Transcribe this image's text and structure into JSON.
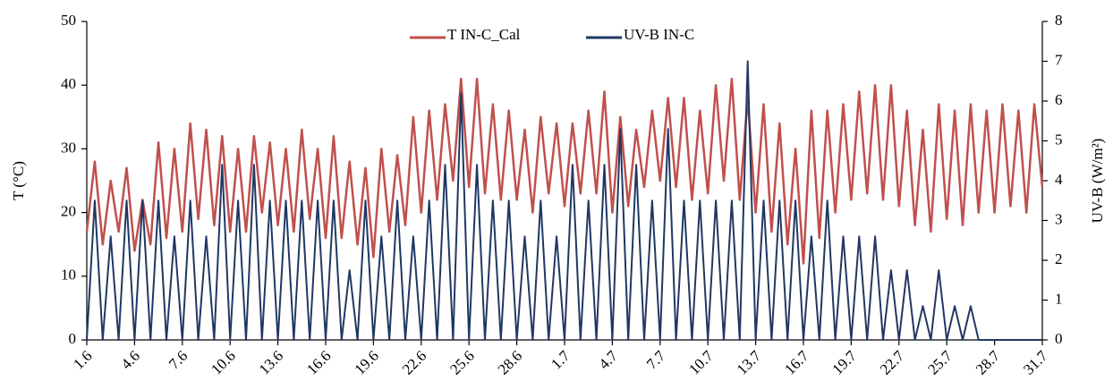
{
  "chart_data": {
    "type": "line",
    "categories": [
      "1.6",
      null,
      null,
      null,
      null,
      null,
      "4.6",
      null,
      null,
      null,
      null,
      null,
      "7.6",
      null,
      null,
      null,
      null,
      null,
      "10.6",
      null,
      null,
      null,
      null,
      null,
      "13.6",
      null,
      null,
      null,
      null,
      null,
      "16.6",
      null,
      null,
      null,
      null,
      null,
      "19.6",
      null,
      null,
      null,
      null,
      null,
      "22.6",
      null,
      null,
      null,
      null,
      null,
      "25.6",
      null,
      null,
      null,
      null,
      null,
      "28.6",
      null,
      null,
      null,
      null,
      null,
      "1.7",
      null,
      null,
      null,
      null,
      null,
      "4.7",
      null,
      null,
      null,
      null,
      null,
      "7.7",
      null,
      null,
      null,
      null,
      null,
      "10.7",
      null,
      null,
      null,
      null,
      null,
      "13.7",
      null,
      null,
      null,
      null,
      null,
      "16.7",
      null,
      null,
      null,
      null,
      null,
      "19.7",
      null,
      null,
      null,
      null,
      null,
      "22.7",
      null,
      null,
      null,
      null,
      null,
      "25.7",
      null,
      null,
      null,
      null,
      null,
      "28.7",
      null,
      null,
      null,
      null,
      null,
      "31.7"
    ],
    "series": [
      {
        "name": "T IN-C_Cal",
        "color": "#c0504d",
        "axis": "y",
        "values": [
          17,
          28,
          15,
          25,
          17,
          27,
          14,
          22,
          15,
          31,
          16,
          30,
          17,
          34,
          19,
          33,
          18,
          32,
          17,
          30,
          17,
          32,
          20,
          31,
          18,
          30,
          17,
          33,
          19,
          30,
          16,
          32,
          16,
          28,
          15,
          27,
          13,
          30,
          17,
          29,
          18,
          35,
          20,
          36,
          22,
          37,
          25,
          41,
          24,
          41,
          23,
          37,
          22,
          36,
          22,
          33,
          20,
          35,
          23,
          34,
          21,
          34,
          23,
          36,
          23,
          39,
          20,
          35,
          21,
          33,
          24,
          36,
          25,
          38,
          24,
          38,
          22,
          36,
          23,
          40,
          25,
          41,
          22,
          38,
          20,
          37,
          17,
          34,
          15,
          30,
          12,
          36,
          16,
          36,
          20,
          37,
          22,
          39,
          23,
          40,
          22,
          40,
          21,
          36,
          18,
          33,
          17,
          37,
          19,
          36,
          18,
          37,
          20,
          36,
          20,
          37,
          21,
          36,
          20,
          37,
          24
        ]
      },
      {
        "name": "UV-B IN-C",
        "color": "#1f3864",
        "axis": "y2",
        "values": [
          0,
          3.5,
          0,
          2.6,
          0,
          3.5,
          0,
          3.5,
          0,
          3.5,
          0,
          2.6,
          0,
          3.5,
          0,
          2.6,
          0,
          4.4,
          0,
          3.5,
          0,
          4.4,
          0,
          3.5,
          0,
          3.5,
          0,
          3.5,
          0,
          3.5,
          0,
          3.5,
          0,
          1.75,
          0,
          3.5,
          0,
          2.6,
          0,
          3.5,
          0,
          2.6,
          0,
          3.5,
          0,
          4.4,
          0,
          6.2,
          0,
          4.4,
          0,
          3.5,
          0,
          3.5,
          0,
          2.6,
          0,
          3.5,
          0,
          2.6,
          0,
          4.4,
          0,
          3.5,
          0,
          4.4,
          0,
          5.3,
          0,
          4.4,
          0,
          3.5,
          0,
          5.3,
          0,
          3.5,
          0,
          3.5,
          0,
          3.5,
          0,
          3.5,
          0,
          7.0,
          0,
          3.5,
          0,
          3.5,
          0,
          3.5,
          0,
          2.6,
          0,
          3.5,
          0,
          2.6,
          0,
          2.6,
          0,
          2.6,
          0,
          1.75,
          0,
          1.75,
          0,
          0.85,
          0,
          1.75,
          0,
          0.85,
          0,
          0.85,
          0,
          0,
          0,
          0,
          0,
          0,
          0,
          0,
          0
        ]
      }
    ],
    "ylabel": "T (°C)",
    "y2label": "UV-B (W/m²)",
    "ylim": [
      0,
      50
    ],
    "yticks": [
      0,
      10,
      20,
      30,
      40,
      50
    ],
    "y2lim": [
      0,
      8
    ],
    "y2ticks": [
      0,
      1,
      2,
      3,
      4,
      5,
      6,
      7,
      8
    ],
    "legend": "top"
  }
}
